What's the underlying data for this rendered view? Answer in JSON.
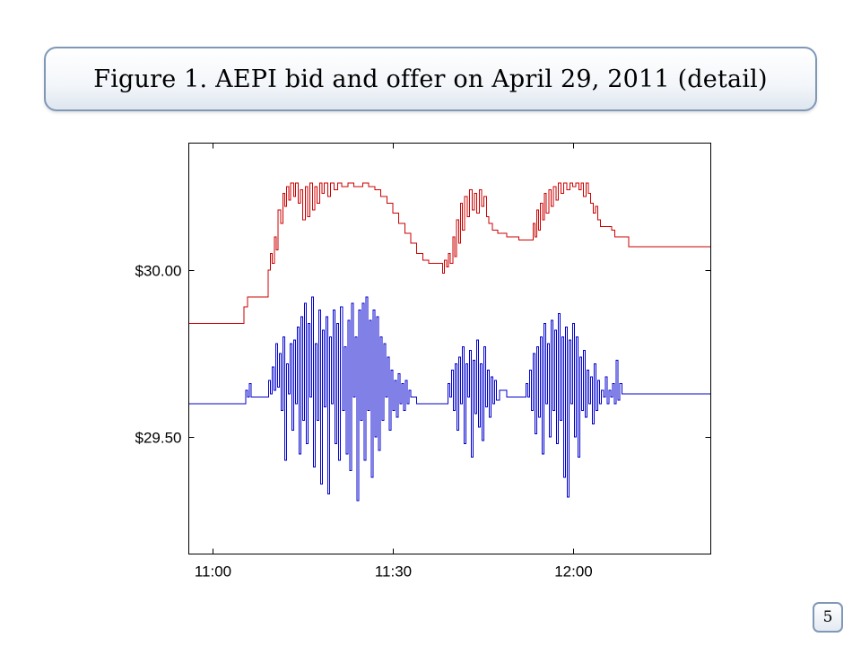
{
  "slide": {
    "title": "Figure 1. AEPI bid and offer on April 29, 2011 (detail)",
    "page_number": "5"
  },
  "chart_data": {
    "type": "line",
    "step": true,
    "title": "",
    "xlabel": "",
    "ylabel": "",
    "x_unit": "minutes after 11:00",
    "x_range": [
      -4,
      83
    ],
    "y_range": [
      29.15,
      30.38
    ],
    "x_ticks": [
      {
        "value": 0,
        "label": "11:00"
      },
      {
        "value": 30,
        "label": "11:30"
      },
      {
        "value": 60,
        "label": "12:00"
      }
    ],
    "y_ticks": [
      {
        "value": 30.0,
        "label": "$30.00"
      },
      {
        "value": 29.5,
        "label": "$29.50"
      }
    ],
    "grid": false,
    "legend": "none",
    "series": [
      {
        "color": "#cc0000",
        "points": [
          [
            -4,
            29.84
          ],
          [
            5.1,
            29.84
          ],
          [
            5.2,
            29.89
          ],
          [
            5.8,
            29.92
          ],
          [
            9,
            29.92
          ],
          [
            9.2,
            30.0
          ],
          [
            9.6,
            30.05
          ],
          [
            9.9,
            30.02
          ],
          [
            10.3,
            30.1
          ],
          [
            10.6,
            30.06
          ],
          [
            10.9,
            30.18
          ],
          [
            11.3,
            30.14
          ],
          [
            11.7,
            30.23
          ],
          [
            12,
            30.19
          ],
          [
            12.3,
            30.25
          ],
          [
            12.7,
            30.21
          ],
          [
            13,
            30.26
          ],
          [
            13.5,
            30.22
          ],
          [
            13.8,
            30.26
          ],
          [
            14.2,
            30.2
          ],
          [
            14.6,
            30.24
          ],
          [
            15,
            30.15
          ],
          [
            15.4,
            30.25
          ],
          [
            15.8,
            30.16
          ],
          [
            16.2,
            30.26
          ],
          [
            16.6,
            30.18
          ],
          [
            17,
            30.25
          ],
          [
            17.4,
            30.2
          ],
          [
            17.8,
            30.26
          ],
          [
            18.2,
            30.23
          ],
          [
            18.6,
            30.26
          ],
          [
            19.2,
            30.22
          ],
          [
            19.6,
            30.26
          ],
          [
            20.2,
            30.24
          ],
          [
            20.8,
            30.26
          ],
          [
            21.5,
            30.25
          ],
          [
            22.5,
            30.26
          ],
          [
            23.5,
            30.25
          ],
          [
            25,
            30.26
          ],
          [
            26,
            30.25
          ],
          [
            27,
            30.24
          ],
          [
            28,
            30.22
          ],
          [
            29,
            30.2
          ],
          [
            30,
            30.17
          ],
          [
            31,
            30.14
          ],
          [
            32,
            30.11
          ],
          [
            33,
            30.08
          ],
          [
            34,
            30.05
          ],
          [
            35,
            30.03
          ],
          [
            36,
            30.02
          ],
          [
            37,
            30.02
          ],
          [
            38,
            30.02
          ],
          [
            38.3,
            29.99
          ],
          [
            38.6,
            30.03
          ],
          [
            39,
            30.01
          ],
          [
            39.3,
            30.05
          ],
          [
            39.6,
            30.02
          ],
          [
            40,
            30.1
          ],
          [
            40.3,
            30.04
          ],
          [
            40.6,
            30.15
          ],
          [
            41,
            30.08
          ],
          [
            41.3,
            30.2
          ],
          [
            41.6,
            30.12
          ],
          [
            42,
            30.22
          ],
          [
            42.4,
            30.16
          ],
          [
            42.8,
            30.24
          ],
          [
            43.2,
            30.18
          ],
          [
            43.6,
            30.23
          ],
          [
            44,
            30.17
          ],
          [
            44.4,
            30.24
          ],
          [
            44.8,
            30.19
          ],
          [
            45.2,
            30.22
          ],
          [
            45.6,
            30.16
          ],
          [
            46,
            30.14
          ],
          [
            46.6,
            30.12
          ],
          [
            47.5,
            30.11
          ],
          [
            49,
            30.1
          ],
          [
            51,
            30.09
          ],
          [
            53,
            30.09
          ],
          [
            53.4,
            30.14
          ],
          [
            53.7,
            30.1
          ],
          [
            54,
            30.18
          ],
          [
            54.3,
            30.12
          ],
          [
            54.6,
            30.2
          ],
          [
            55,
            30.15
          ],
          [
            55.3,
            30.23
          ],
          [
            55.6,
            30.17
          ],
          [
            56,
            30.24
          ],
          [
            56.4,
            30.19
          ],
          [
            56.8,
            30.25
          ],
          [
            57.2,
            30.21
          ],
          [
            57.6,
            30.26
          ],
          [
            58,
            30.23
          ],
          [
            58.5,
            30.26
          ],
          [
            59,
            30.24
          ],
          [
            59.5,
            30.26
          ],
          [
            60,
            30.25
          ],
          [
            60.5,
            30.26
          ],
          [
            61,
            30.24
          ],
          [
            61.4,
            30.26
          ],
          [
            61.8,
            30.22
          ],
          [
            62.2,
            30.26
          ],
          [
            62.6,
            30.23
          ],
          [
            63,
            30.2
          ],
          [
            63.4,
            30.17
          ],
          [
            63.8,
            30.19
          ],
          [
            64.2,
            30.15
          ],
          [
            64.6,
            30.13
          ],
          [
            65.5,
            30.13
          ],
          [
            66.5,
            30.12
          ],
          [
            67,
            30.1
          ],
          [
            68.5,
            30.1
          ],
          [
            69.3,
            30.07
          ],
          [
            83,
            30.07
          ]
        ]
      },
      {
        "color": "#0000cc",
        "points": [
          [
            -4,
            29.6
          ],
          [
            5.2,
            29.6
          ],
          [
            5.5,
            29.64
          ],
          [
            5.8,
            29.62
          ],
          [
            6.1,
            29.66
          ],
          [
            6.4,
            29.62
          ],
          [
            9,
            29.62
          ],
          [
            9.3,
            29.67
          ],
          [
            9.6,
            29.63
          ],
          [
            9.9,
            29.71
          ],
          [
            10.2,
            29.64
          ],
          [
            10.5,
            29.78
          ],
          [
            10.8,
            29.65
          ],
          [
            11.1,
            29.75
          ],
          [
            11.4,
            29.58
          ],
          [
            11.7,
            29.8
          ],
          [
            12,
            29.43
          ],
          [
            12.3,
            29.72
          ],
          [
            12.6,
            29.63
          ],
          [
            12.9,
            29.78
          ],
          [
            13.2,
            29.52
          ],
          [
            13.5,
            29.79
          ],
          [
            13.8,
            29.6
          ],
          [
            14.1,
            29.83
          ],
          [
            14.4,
            29.45
          ],
          [
            14.7,
            29.86
          ],
          [
            15,
            29.55
          ],
          [
            15.3,
            29.9
          ],
          [
            15.6,
            29.48
          ],
          [
            15.9,
            29.84
          ],
          [
            16.2,
            29.62
          ],
          [
            16.5,
            29.92
          ],
          [
            16.8,
            29.41
          ],
          [
            17.1,
            29.78
          ],
          [
            17.4,
            29.55
          ],
          [
            17.7,
            29.88
          ],
          [
            18,
            29.36
          ],
          [
            18.3,
            29.82
          ],
          [
            18.6,
            29.59
          ],
          [
            18.9,
            29.86
          ],
          [
            19.2,
            29.33
          ],
          [
            19.5,
            29.8
          ],
          [
            19.8,
            29.6
          ],
          [
            20.1,
            29.88
          ],
          [
            20.4,
            29.48
          ],
          [
            20.7,
            29.84
          ],
          [
            21,
            29.43
          ],
          [
            21.3,
            29.89
          ],
          [
            21.6,
            29.58
          ],
          [
            21.9,
            29.77
          ],
          [
            22.2,
            29.45
          ],
          [
            22.5,
            29.85
          ],
          [
            22.8,
            29.4
          ],
          [
            23.1,
            29.9
          ],
          [
            23.4,
            29.62
          ],
          [
            23.7,
            29.8
          ],
          [
            24,
            29.31
          ],
          [
            24.3,
            29.88
          ],
          [
            24.6,
            29.55
          ],
          [
            24.9,
            29.9
          ],
          [
            25.2,
            29.43
          ],
          [
            25.5,
            29.92
          ],
          [
            25.8,
            29.58
          ],
          [
            26.1,
            29.85
          ],
          [
            26.4,
            29.38
          ],
          [
            26.7,
            29.88
          ],
          [
            27,
            29.5
          ],
          [
            27.3,
            29.86
          ],
          [
            27.6,
            29.46
          ],
          [
            27.9,
            29.8
          ],
          [
            28.2,
            29.55
          ],
          [
            28.5,
            29.78
          ],
          [
            28.8,
            29.62
          ],
          [
            29.1,
            29.74
          ],
          [
            29.4,
            29.52
          ],
          [
            29.7,
            29.7
          ],
          [
            30,
            29.58
          ],
          [
            30.3,
            29.67
          ],
          [
            30.6,
            29.56
          ],
          [
            30.9,
            29.69
          ],
          [
            31.2,
            29.6
          ],
          [
            31.5,
            29.66
          ],
          [
            31.8,
            29.58
          ],
          [
            32.1,
            29.67
          ],
          [
            32.4,
            29.6
          ],
          [
            32.7,
            29.64
          ],
          [
            33,
            29.62
          ],
          [
            33.5,
            29.62
          ],
          [
            34,
            29.6
          ],
          [
            39,
            29.6
          ],
          [
            39.2,
            29.66
          ],
          [
            39.5,
            29.62
          ],
          [
            39.8,
            29.7
          ],
          [
            40.1,
            29.58
          ],
          [
            40.4,
            29.72
          ],
          [
            40.7,
            29.52
          ],
          [
            41,
            29.74
          ],
          [
            41.3,
            29.6
          ],
          [
            41.6,
            29.77
          ],
          [
            41.9,
            29.48
          ],
          [
            42.2,
            29.72
          ],
          [
            42.5,
            29.62
          ],
          [
            42.8,
            29.76
          ],
          [
            43.1,
            29.44
          ],
          [
            43.4,
            29.73
          ],
          [
            43.7,
            29.57
          ],
          [
            44,
            29.79
          ],
          [
            44.3,
            29.53
          ],
          [
            44.6,
            29.72
          ],
          [
            44.9,
            29.49
          ],
          [
            45.2,
            29.77
          ],
          [
            45.5,
            29.59
          ],
          [
            45.8,
            29.7
          ],
          [
            46.1,
            29.56
          ],
          [
            46.4,
            29.68
          ],
          [
            46.7,
            29.6
          ],
          [
            47,
            29.67
          ],
          [
            47.3,
            29.61
          ],
          [
            47.8,
            29.64
          ],
          [
            48.5,
            29.64
          ],
          [
            49,
            29.62
          ],
          [
            52,
            29.62
          ],
          [
            52.2,
            29.66
          ],
          [
            52.5,
            29.62
          ],
          [
            52.8,
            29.7
          ],
          [
            53.1,
            29.58
          ],
          [
            53.4,
            29.75
          ],
          [
            53.7,
            29.51
          ],
          [
            54,
            29.77
          ],
          [
            54.3,
            29.56
          ],
          [
            54.6,
            29.8
          ],
          [
            54.9,
            29.45
          ],
          [
            55.2,
            29.84
          ],
          [
            55.5,
            29.6
          ],
          [
            55.8,
            29.78
          ],
          [
            56.1,
            29.5
          ],
          [
            56.4,
            29.85
          ],
          [
            56.7,
            29.58
          ],
          [
            57,
            29.82
          ],
          [
            57.3,
            29.48
          ],
          [
            57.6,
            29.87
          ],
          [
            57.9,
            29.55
          ],
          [
            58.2,
            29.8
          ],
          [
            58.5,
            29.38
          ],
          [
            58.8,
            29.83
          ],
          [
            59.1,
            29.32
          ],
          [
            59.4,
            29.79
          ],
          [
            59.7,
            29.6
          ],
          [
            60,
            29.84
          ],
          [
            60.3,
            29.5
          ],
          [
            60.6,
            29.8
          ],
          [
            60.9,
            29.44
          ],
          [
            61.2,
            29.74
          ],
          [
            61.5,
            29.58
          ],
          [
            61.8,
            29.76
          ],
          [
            62.1,
            29.56
          ],
          [
            62.4,
            29.7
          ],
          [
            62.7,
            29.6
          ],
          [
            63,
            29.68
          ],
          [
            63.3,
            29.54
          ],
          [
            63.6,
            29.72
          ],
          [
            63.9,
            29.58
          ],
          [
            64.2,
            29.67
          ],
          [
            64.5,
            29.6
          ],
          [
            64.8,
            29.64
          ],
          [
            65.1,
            29.62
          ],
          [
            65.4,
            29.68
          ],
          [
            65.7,
            29.6
          ],
          [
            66,
            29.64
          ],
          [
            66.3,
            29.62
          ],
          [
            66.6,
            29.66
          ],
          [
            66.9,
            29.6
          ],
          [
            67.2,
            29.73
          ],
          [
            67.5,
            29.61
          ],
          [
            67.8,
            29.66
          ],
          [
            68.2,
            29.63
          ],
          [
            83,
            29.63
          ]
        ]
      }
    ]
  }
}
